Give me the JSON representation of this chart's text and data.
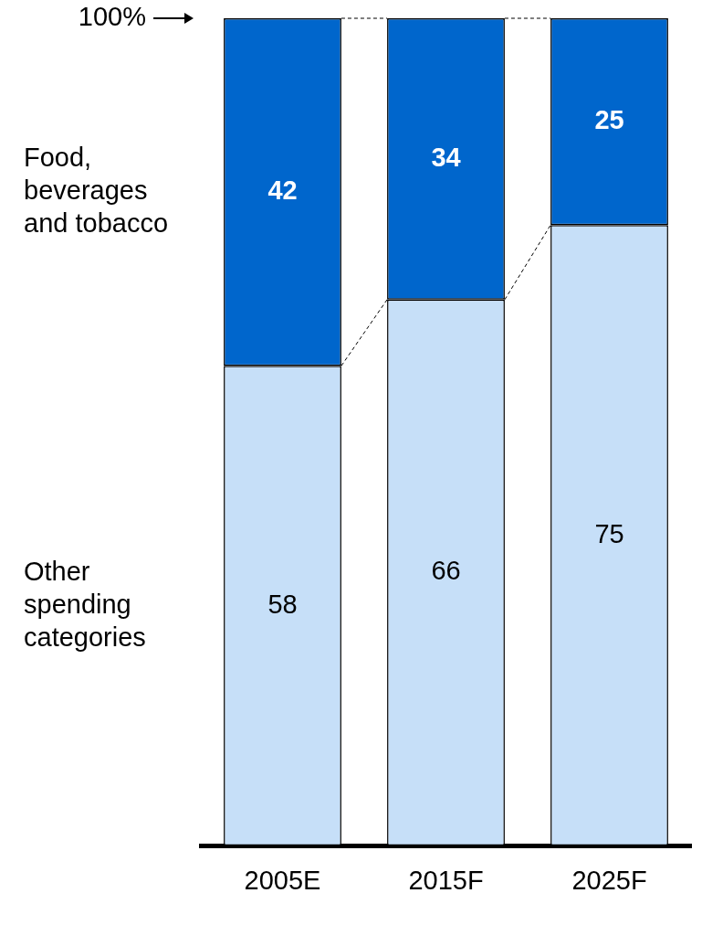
{
  "chart_data": {
    "type": "bar",
    "stacked": true,
    "categories": [
      "2005E",
      "2015F",
      "2025F"
    ],
    "series": [
      {
        "name": "Other spending categories",
        "color": "#c6dff8",
        "values": [
          58,
          66,
          75
        ]
      },
      {
        "name": "Food, beverages and tobacco",
        "color": "#0066cc",
        "values": [
          42,
          34,
          25
        ]
      }
    ],
    "ylim": [
      0,
      100
    ],
    "annotations": [
      "100%"
    ],
    "data_labels": true,
    "legend": false,
    "grid": false
  }
}
